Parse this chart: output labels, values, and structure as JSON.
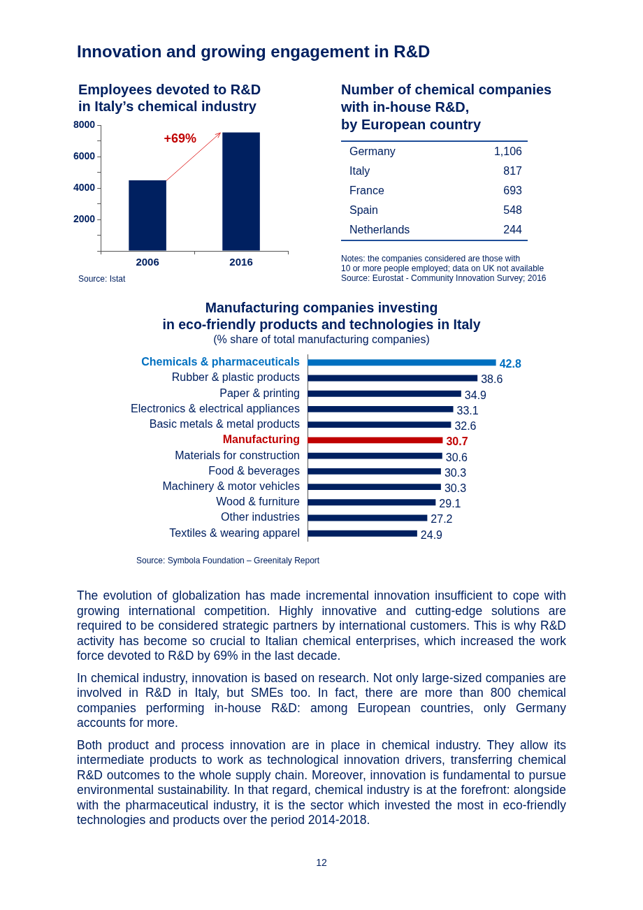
{
  "chart_data": [
    {
      "type": "other",
      "title": "Innovation and growing engagement in R&D"
    },
    {
      "type": "bar",
      "title": "Employees devoted to R&D\nin Italy’s chemical industry",
      "categories": [
        "2006",
        "2016"
      ],
      "values": [
        4500,
        7550
      ],
      "color": "#002060",
      "ylim": [
        0,
        8000
      ],
      "yticks": [
        {
          "value": 0,
          "label": null
        },
        {
          "value": 1000,
          "label": null
        },
        2000,
        {
          "value": 3000,
          "label": null
        },
        4000,
        {
          "value": 5000,
          "label": null
        },
        6000,
        {
          "value": 7000,
          "label": null
        },
        8000
      ],
      "grid": false,
      "annotations": [
        "+69%",
        "Source: Istat"
      ]
    },
    {
      "type": "other",
      "title": "Number of chemical companies\nwith in-house R&D,\nby European country",
      "categories": [
        "Germany",
        "Italy",
        "France",
        "Spain",
        "Netherlands"
      ],
      "value_labels": [
        "1,106",
        "817",
        "693",
        "548",
        "244"
      ],
      "annotations": [
        "Notes: the companies considered are those with\n10 or more people employed; data on UK not available",
        "Source: Eurostat - Community Innovation Survey; 2016"
      ]
    },
    {
      "type": "bar",
      "orientation": "horizontal",
      "title": "Manufacturing companies investing\nin eco-friendly products and technologies in Italy",
      "subtitle": "(% share of total manufacturing companies)",
      "categories": [
        "Chemicals & pharmaceuticals",
        "Rubber & plastic products",
        "Paper & printing",
        "Electronics & electrical appliances",
        "Basic metals & metal products",
        "Manufacturing",
        "Materials for construction",
        "Food & beverages",
        "Machinery & motor vehicles",
        "Wood & furniture",
        "Other industries",
        "Textiles & wearing apparel"
      ],
      "values": [
        42.8,
        38.6,
        34.9,
        33.1,
        32.6,
        30.7,
        30.6,
        30.3,
        30.3,
        29.1,
        27.2,
        24.9
      ],
      "colors": [
        "#0070c0",
        "#002060",
        "#002060",
        "#002060",
        "#002060",
        "#c00000",
        "#002060",
        "#002060",
        "#002060",
        "#002060",
        "#002060",
        "#002060"
      ],
      "data_labels": true,
      "annotations": [
        "Source: Symbola Foundation – Greenitaly Report"
      ]
    },
    {
      "type": "other",
      "annotations": [
        "The evolution of globalization has made incremental innovation insufficient to cope with growing international competition. Highly innovative and cutting-edge solutions are required to be considered strategic partners by international customers. This is why R&D activity has become so crucial to Italian chemical enterprises, which increased the work force devoted to R&D by 69% in the last decade.",
        "In chemical industry, innovation is based on research. Not only large-sized companies are involved in R&D in Italy, but SMEs too. In fact, there are more than 800 chemical companies performing in-house R&D: among European countries, only Germany accounts for more.",
        "Both product and process innovation are in place in chemical industry. They allow its intermediate products to work as technological innovation drivers, transferring chemical R&D outcomes to the whole supply chain. Moreover, innovation is fundamental to pursue environmental sustainability. In that regard, chemical industry is at the forefront: alongside with the pharmaceutical industry, it is the sector which invested the most in eco-friendly technologies and products over the period 2014-2018.",
        "12"
      ]
    }
  ]
}
